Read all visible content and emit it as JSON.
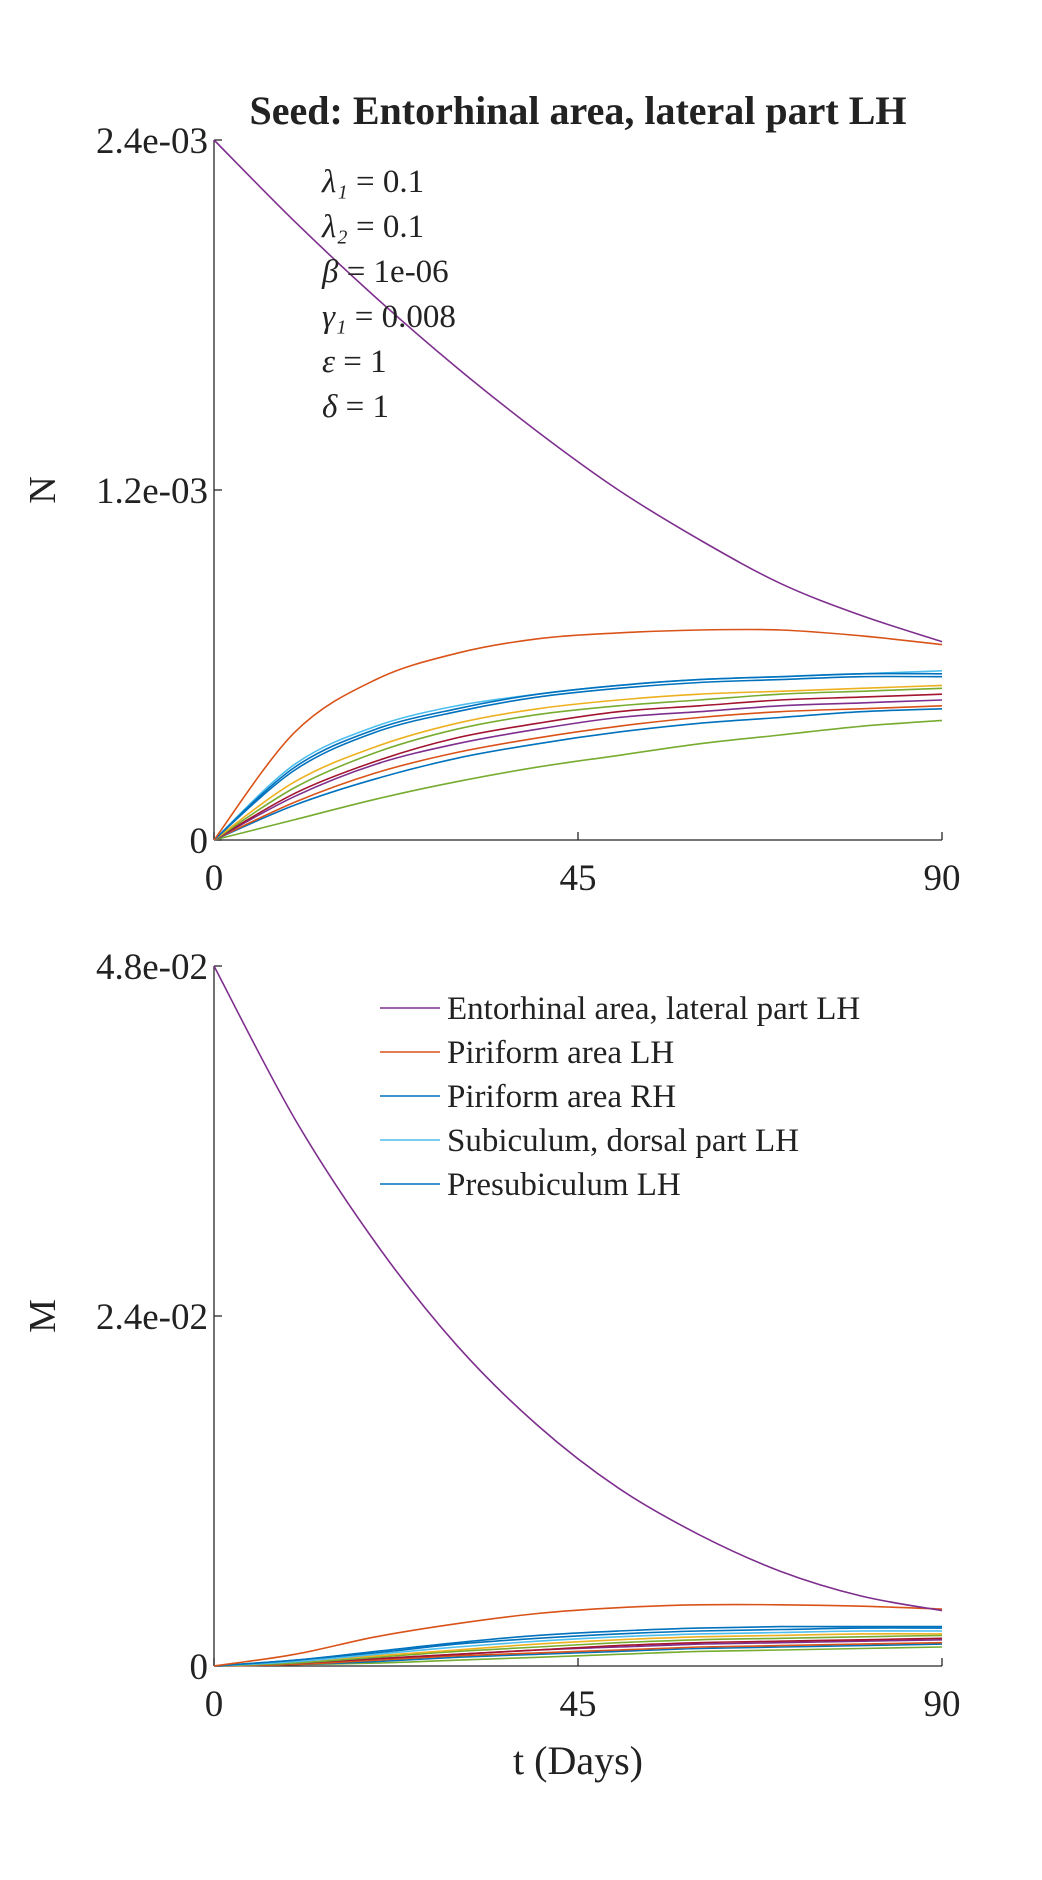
{
  "chart_data": [
    {
      "type": "line",
      "title": "Seed: Entorhinal area, lateral part LH",
      "ylabel": "N",
      "xlabel": "",
      "xlim": [
        0,
        90
      ],
      "ylim": [
        0,
        0.0024
      ],
      "xticks": [
        0,
        45,
        90
      ],
      "xtick_labels": [
        "0",
        "45",
        "90"
      ],
      "yticks": [
        0,
        0.0012,
        0.0024
      ],
      "ytick_labels": [
        "0",
        "1.2e-03",
        "2.4e-03"
      ],
      "grid": false,
      "parameters": [
        {
          "symbol": "λ₁",
          "value": "0.1"
        },
        {
          "symbol": "λ₂",
          "value": "0.1"
        },
        {
          "symbol": "β",
          "value": "1e-06"
        },
        {
          "symbol": "γ₁",
          "value": "0.008"
        },
        {
          "symbol": "ε",
          "value": "1"
        },
        {
          "symbol": "δ",
          "value": "1"
        }
      ],
      "x": [
        0,
        10,
        20,
        30,
        40,
        50,
        60,
        70,
        80,
        90
      ],
      "series": [
        {
          "name": "Entorhinal area, lateral part LH",
          "color": "#7E2F8E",
          "values": [
            0.0024,
            0.00212,
            0.00186,
            0.00162,
            0.0014,
            0.0012,
            0.00103,
            0.00088,
            0.00077,
            0.00068
          ]
        },
        {
          "name": "Piriform area LH",
          "color": "#D95319",
          "values": [
            0,
            0.00037,
            0.00055,
            0.00064,
            0.00069,
            0.00071,
            0.00072,
            0.00072,
            0.0007,
            0.00067
          ]
        },
        {
          "name": "Piriform area RH",
          "color": "#0072BD",
          "values": [
            0,
            0.00025,
            0.00038,
            0.00045,
            0.0005,
            0.00053,
            0.00055,
            0.00056,
            0.00057,
            0.00057
          ]
        },
        {
          "name": "Subiculum, dorsal part LH",
          "color": "#4DBEEE",
          "values": [
            0,
            0.00026,
            0.00039,
            0.00046,
            0.0005,
            0.00053,
            0.00055,
            0.00056,
            0.00057,
            0.00058
          ]
        },
        {
          "name": "Presubiculum LH",
          "color": "#0072BD",
          "values": [
            0,
            0.00024,
            0.00037,
            0.00044,
            0.00049,
            0.00052,
            0.00054,
            0.00055,
            0.00056,
            0.00056
          ]
        },
        {
          "color": "#EDB120",
          "values": [
            0,
            0.0002,
            0.00032,
            0.0004,
            0.00045,
            0.00048,
            0.0005,
            0.00051,
            0.00052,
            0.00053
          ]
        },
        {
          "color": "#77AC30",
          "values": [
            0,
            0.00018,
            0.0003,
            0.00038,
            0.00043,
            0.00046,
            0.00048,
            0.0005,
            0.00051,
            0.00052
          ]
        },
        {
          "color": "#A2142F",
          "values": [
            0,
            0.00016,
            0.00027,
            0.00035,
            0.0004,
            0.00044,
            0.00046,
            0.00048,
            0.00049,
            0.0005
          ]
        },
        {
          "color": "#7E2F8E",
          "values": [
            0,
            0.00015,
            0.00026,
            0.00033,
            0.00038,
            0.00042,
            0.00044,
            0.00046,
            0.00047,
            0.00048
          ]
        },
        {
          "color": "#D95319",
          "values": [
            0,
            0.00013,
            0.00023,
            0.0003,
            0.00035,
            0.00039,
            0.00042,
            0.00044,
            0.00045,
            0.00046
          ]
        },
        {
          "color": "#0072BD",
          "values": [
            0,
            0.00012,
            0.00021,
            0.00028,
            0.00033,
            0.00037,
            0.0004,
            0.00042,
            0.00044,
            0.00045
          ]
        },
        {
          "color": "#77AC30",
          "values": [
            0,
            7e-05,
            0.00014,
            0.0002,
            0.00025,
            0.00029,
            0.00033,
            0.00036,
            0.00039,
            0.00041
          ]
        }
      ]
    },
    {
      "type": "line",
      "title": "",
      "ylabel": "M",
      "xlabel": "t (Days)",
      "xlim": [
        0,
        90
      ],
      "ylim": [
        0,
        0.048
      ],
      "xticks": [
        0,
        45,
        90
      ],
      "xtick_labels": [
        "0",
        "45",
        "90"
      ],
      "yticks": [
        0,
        0.024,
        0.048
      ],
      "ytick_labels": [
        "0",
        "2.4e-02",
        "4.8e-02"
      ],
      "grid": false,
      "legend_placement": "top-right",
      "x": [
        0,
        10,
        20,
        30,
        40,
        50,
        60,
        70,
        80,
        90
      ],
      "series": [
        {
          "name": "Entorhinal area, lateral part LH",
          "color": "#7E2F8E",
          "values": [
            0.048,
            0.0375,
            0.029,
            0.022,
            0.0165,
            0.0122,
            0.009,
            0.0065,
            0.0048,
            0.0038
          ]
        },
        {
          "name": "Piriform area LH",
          "color": "#D95319",
          "values": [
            0,
            0.0008,
            0.002,
            0.0029,
            0.0036,
            0.004,
            0.0042,
            0.0042,
            0.0041,
            0.0039
          ]
        },
        {
          "name": "Piriform area RH",
          "color": "#0072BD",
          "values": [
            0,
            0.0004,
            0.001,
            0.0016,
            0.0021,
            0.0024,
            0.0026,
            0.0027,
            0.0027,
            0.0027
          ]
        },
        {
          "name": "Subiculum, dorsal part LH",
          "color": "#4DBEEE",
          "values": [
            0,
            0.0003,
            0.0008,
            0.0013,
            0.0017,
            0.002,
            0.0022,
            0.0023,
            0.0024,
            0.0024
          ]
        },
        {
          "name": "Presubiculum LH",
          "color": "#0072BD",
          "values": [
            0,
            0.0004,
            0.0009,
            0.0015,
            0.0019,
            0.0022,
            0.0024,
            0.0025,
            0.0026,
            0.0026
          ]
        },
        {
          "color": "#EDB120",
          "values": [
            0,
            0.0003,
            0.0007,
            0.0011,
            0.0015,
            0.0018,
            0.002,
            0.0021,
            0.0022,
            0.0022
          ]
        },
        {
          "color": "#77AC30",
          "values": [
            0,
            0.0002,
            0.0006,
            0.001,
            0.0013,
            0.0016,
            0.0018,
            0.0019,
            0.002,
            0.0021
          ]
        },
        {
          "color": "#A2142F",
          "values": [
            0,
            0.0002,
            0.0005,
            0.0008,
            0.0011,
            0.0014,
            0.0016,
            0.0017,
            0.0018,
            0.0019
          ]
        },
        {
          "color": "#7E2F8E",
          "values": [
            0,
            0.0002,
            0.0005,
            0.0008,
            0.0011,
            0.0013,
            0.0015,
            0.0016,
            0.0017,
            0.0018
          ]
        },
        {
          "color": "#D95319",
          "values": [
            0,
            0.0001,
            0.0004,
            0.0007,
            0.0009,
            0.0011,
            0.0013,
            0.0014,
            0.0015,
            0.0016
          ]
        },
        {
          "color": "#0072BD",
          "values": [
            0,
            0.0001,
            0.0003,
            0.0006,
            0.0008,
            0.001,
            0.0012,
            0.0013,
            0.0014,
            0.0015
          ]
        },
        {
          "color": "#77AC30",
          "values": [
            0,
            0.0001,
            0.0002,
            0.0004,
            0.0006,
            0.0008,
            0.001,
            0.0011,
            0.0012,
            0.0013
          ]
        }
      ]
    }
  ]
}
